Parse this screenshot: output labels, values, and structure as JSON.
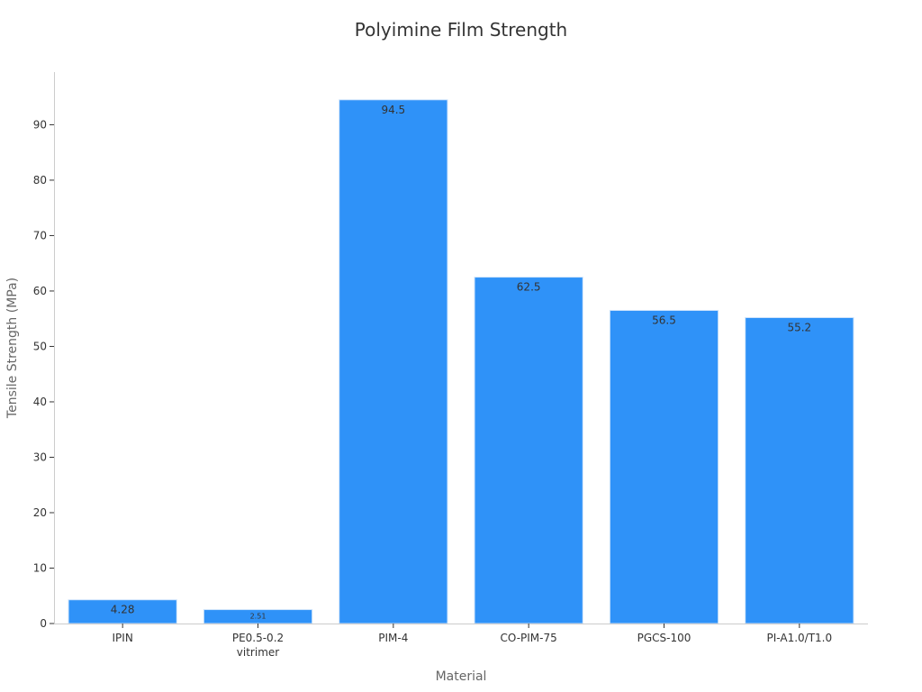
{
  "chart_data": {
    "type": "bar",
    "title": "Polyimine Film Strength",
    "xlabel": "Material",
    "ylabel": "Tensile Strength (MPa)",
    "categories": [
      "IPIN",
      "PE0.5-0.2\nvitrimer",
      "PIM-4",
      "CO-PIM-75",
      "PGCS-100",
      "PI-A1.0/T1.0"
    ],
    "values": [
      4.28,
      2.51,
      94.5,
      62.5,
      56.5,
      55.2
    ],
    "data_labels": [
      "4.28",
      "2.51",
      "94.5",
      "62.5",
      "56.5",
      "55.2"
    ],
    "ylim": [
      0,
      99.5
    ],
    "yticks": [
      0,
      10,
      20,
      30,
      40,
      50,
      60,
      70,
      80,
      90
    ],
    "grid": false,
    "bar_color": "#2f92f8",
    "bar_edge_color": "#cfe4fb"
  }
}
